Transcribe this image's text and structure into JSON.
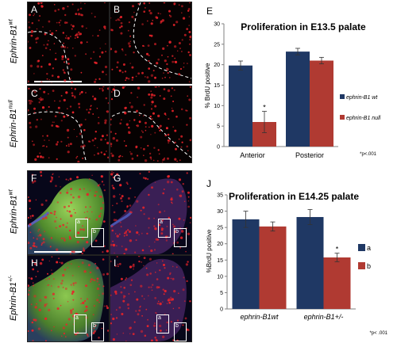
{
  "rows": [
    {
      "gene": "Ephrin-B1",
      "sup": "wt"
    },
    {
      "gene": "Ephrin-B1",
      "sup": "null"
    },
    {
      "gene": "Ephrin-B1",
      "sup": "wt"
    },
    {
      "gene": "Ephrin-B1",
      "sup": "+/-"
    }
  ],
  "panels": [
    "A",
    "B",
    "C",
    "D",
    "F",
    "G",
    "H",
    "I"
  ],
  "box_labels": [
    "a",
    "b"
  ],
  "colors": {
    "dark_blue": "#1f3864",
    "dark_red": "#b03a32",
    "nuclei": "#e8232a"
  },
  "chart_data": [
    {
      "panel": "E",
      "type": "bar",
      "title": "Proliferation in E13.5 palate",
      "ylabel": "% BrdU positive",
      "xlabel": "",
      "categories": [
        "Anterior",
        "Posterior"
      ],
      "series": [
        {
          "name": "ephrin-B1 wt",
          "values": [
            19.8,
            23.2
          ],
          "errors": [
            1.1,
            0.8
          ],
          "color": "#1f3864"
        },
        {
          "name": "ephrin-B1 null",
          "values": [
            6.0,
            21.0
          ],
          "errors": [
            2.6,
            0.8
          ],
          "color": "#b03a32"
        }
      ],
      "ylim": [
        0,
        30
      ],
      "yticks": [
        0,
        5,
        10,
        15,
        20,
        25,
        30
      ],
      "significance": {
        "marker": "*",
        "category": 0,
        "series": 1
      },
      "note": "*p<.001",
      "legend_position": "right"
    },
    {
      "panel": "J",
      "type": "bar",
      "title": "Proliferation in E14.25 palate",
      "ylabel": "%BrdU positive",
      "xlabel": "",
      "categories": [
        "ephrin-B1wt",
        "ephrin-B1+/-"
      ],
      "series": [
        {
          "name": "a",
          "values": [
            27.5,
            28.2
          ],
          "errors": [
            2.5,
            2.3
          ],
          "color": "#1f3864"
        },
        {
          "name": "b",
          "values": [
            25.3,
            15.8
          ],
          "errors": [
            1.4,
            1.3
          ],
          "color": "#b03a32"
        }
      ],
      "ylim": [
        0,
        35
      ],
      "yticks": [
        0,
        5,
        10,
        15,
        20,
        25,
        30,
        35
      ],
      "significance": {
        "marker": "*",
        "category": 1,
        "series": 1
      },
      "note": "*p< .001",
      "legend_position": "right"
    }
  ]
}
